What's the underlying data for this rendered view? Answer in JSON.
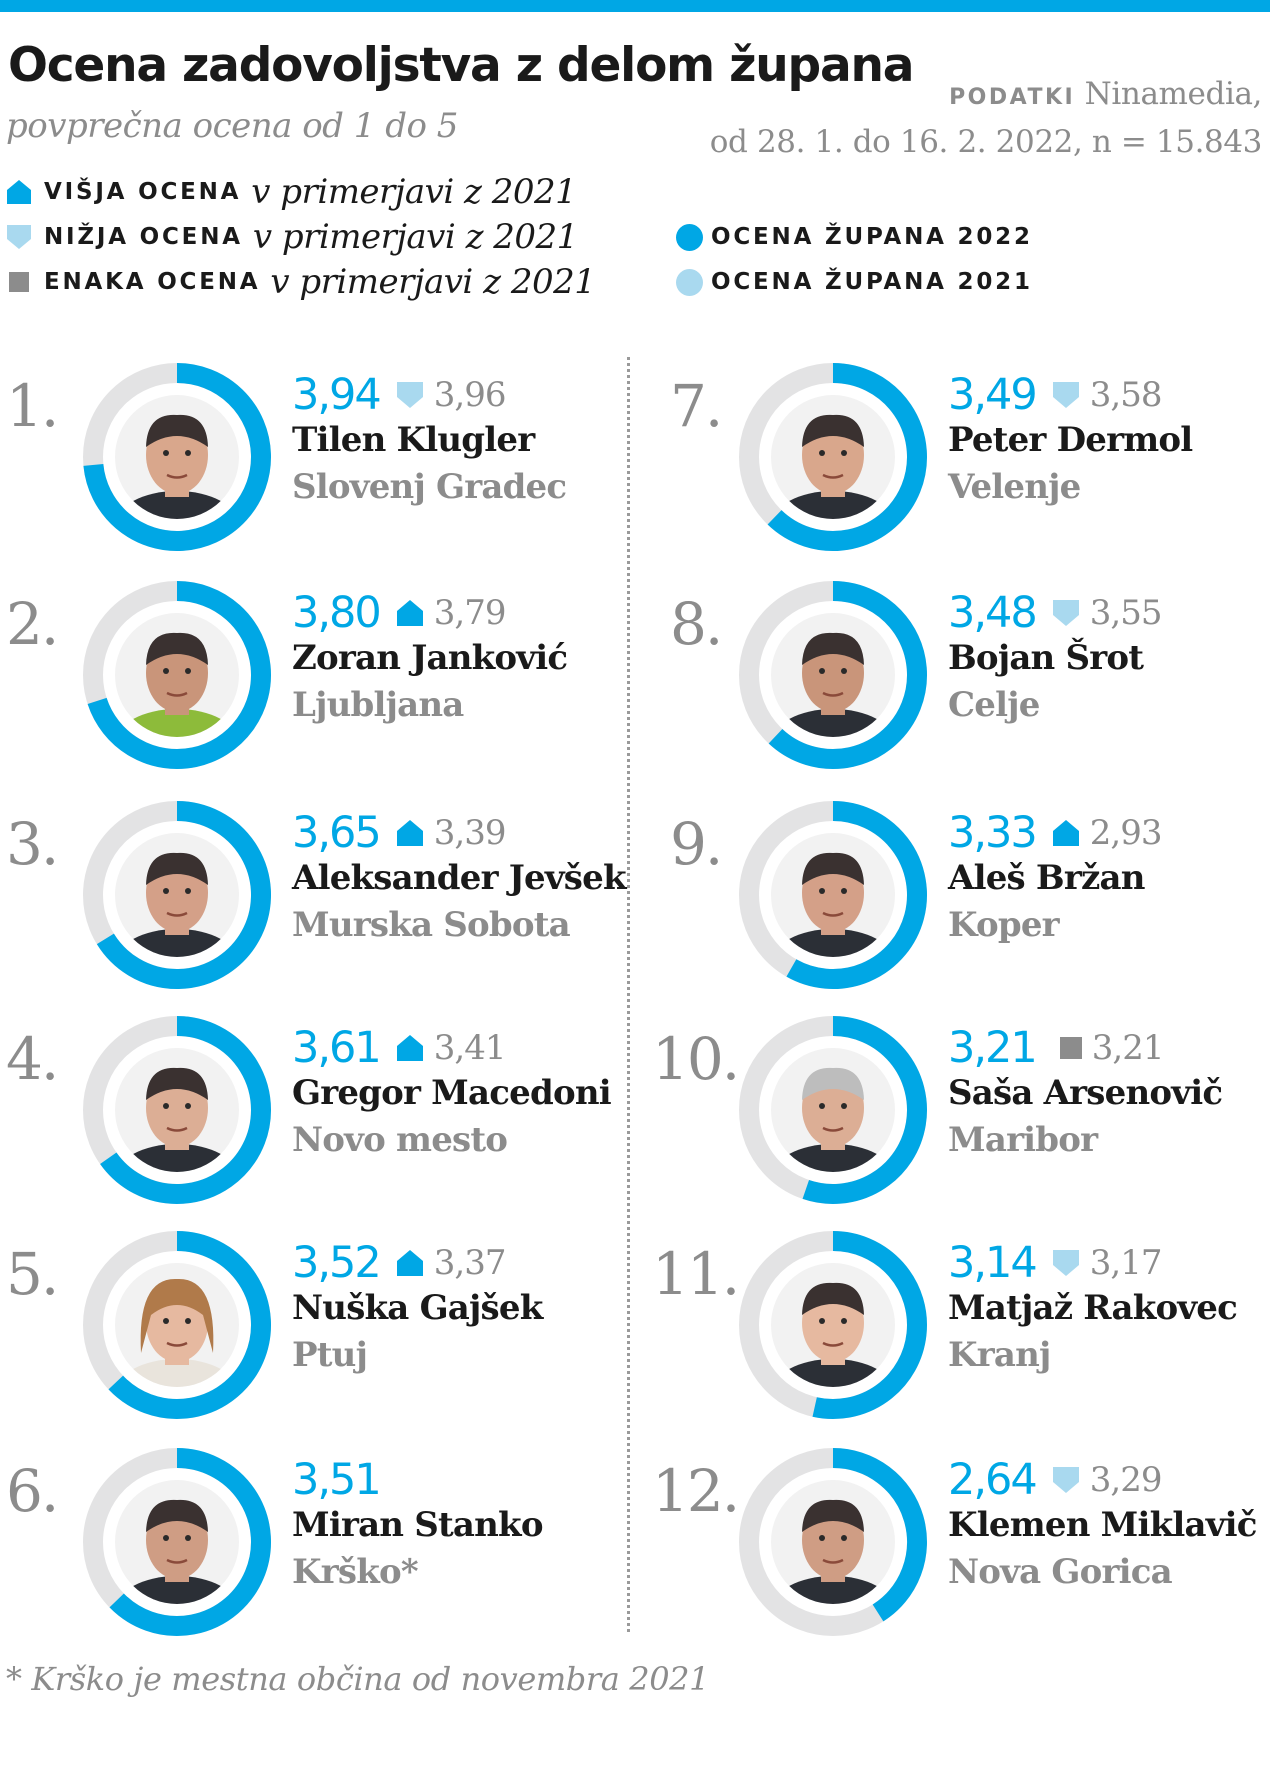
{
  "header": {
    "title": "Ocena zadovoljstva z delom župana",
    "subtitle": "povprečna ocena od 1 do 5",
    "source_label": "PODATKI",
    "source_name": " Ninamedia,",
    "source_detail": "od 28. 1. do 16. 2. 2022, n = 15.843"
  },
  "legend": {
    "higher_key": "VIŠJA OCENA",
    "lower_key": "NIŽJA OCENA",
    "same_key": "ENAKA OCENA",
    "comparison_text": "v primerjavi z 2021",
    "series_2022": "OCENA ŽUPANA 2022",
    "series_2021": "OCENA ŽUPANA 2021"
  },
  "footnote": "* Krško je mestna občina od novembra 2021",
  "colors": {
    "accent_2022": "#00a7e5",
    "light_2021": "#a9d9ef",
    "ring_track": "#e3e3e4",
    "text_gray": "#8c8c8c",
    "same_marker": "#8c8c8c"
  },
  "chart_data": {
    "type": "donut",
    "scale": [
      1,
      5
    ],
    "series": [
      {
        "name": "OCENA ŽUPANA 2022",
        "values": [
          3.94,
          3.8,
          3.65,
          3.61,
          3.52,
          3.51,
          3.49,
          3.48,
          3.33,
          3.21,
          3.14,
          2.64
        ]
      },
      {
        "name": "OCENA ŽUPANA 2021",
        "values": [
          3.96,
          3.79,
          3.39,
          3.41,
          3.37,
          null,
          3.58,
          3.55,
          2.93,
          3.21,
          3.17,
          3.29
        ]
      }
    ],
    "mayors": [
      {
        "rank": "1.",
        "name": "Tilen Klugler",
        "city": "Slovenj Gradec",
        "score_2022": 3.94,
        "score_2022_label": "3,94",
        "score_2021_label": "3,96",
        "change": "lower"
      },
      {
        "rank": "2.",
        "name": "Zoran Janković",
        "city": "Ljubljana",
        "score_2022": 3.8,
        "score_2022_label": "3,80",
        "score_2021_label": "3,79",
        "change": "higher"
      },
      {
        "rank": "3.",
        "name": "Aleksander Jevšek",
        "city": "Murska Sobota",
        "score_2022": 3.65,
        "score_2022_label": "3,65",
        "score_2021_label": "3,39",
        "change": "higher"
      },
      {
        "rank": "4.",
        "name": "Gregor Macedoni",
        "city": "Novo mesto",
        "score_2022": 3.61,
        "score_2022_label": "3,61",
        "score_2021_label": "3,41",
        "change": "higher"
      },
      {
        "rank": "5.",
        "name": "Nuška Gajšek",
        "city": "Ptuj",
        "score_2022": 3.52,
        "score_2022_label": "3,52",
        "score_2021_label": "3,37",
        "change": "higher"
      },
      {
        "rank": "6.",
        "name": "Miran Stanko",
        "city": "Krško*",
        "score_2022": 3.51,
        "score_2022_label": "3,51",
        "score_2021_label": "",
        "change": "none"
      },
      {
        "rank": "7.",
        "name": "Peter Dermol",
        "city": "Velenje",
        "score_2022": 3.49,
        "score_2022_label": "3,49",
        "score_2021_label": "3,58",
        "change": "lower"
      },
      {
        "rank": "8.",
        "name": "Bojan Šrot",
        "city": "Celje",
        "score_2022": 3.48,
        "score_2022_label": "3,48",
        "score_2021_label": "3,55",
        "change": "lower"
      },
      {
        "rank": "9.",
        "name": "Aleš Bržan",
        "city": "Koper",
        "score_2022": 3.33,
        "score_2022_label": "3,33",
        "score_2021_label": "2,93",
        "change": "higher"
      },
      {
        "rank": "10.",
        "name": "Saša Arsenovič",
        "city": "Maribor",
        "score_2022": 3.21,
        "score_2022_label": "3,21",
        "score_2021_label": "3,21",
        "change": "same"
      },
      {
        "rank": "11.",
        "name": "Matjaž Rakovec",
        "city": "Kranj",
        "score_2022": 3.14,
        "score_2022_label": "3,14",
        "score_2021_label": "3,17",
        "change": "lower"
      },
      {
        "rank": "12.",
        "name": "Klemen Miklavič",
        "city": "Nova Gorica",
        "score_2022": 2.64,
        "score_2022_label": "2,64",
        "score_2021_label": "3,29",
        "change": "lower"
      }
    ]
  }
}
